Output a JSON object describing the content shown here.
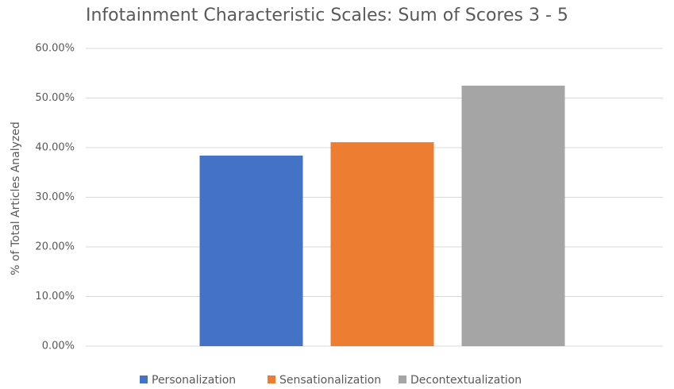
{
  "chart_data": {
    "type": "bar",
    "title": "Infotainment Characteristic Scales: Sum of Scores 3 - 5",
    "y_label": "% of Total Articles Analyzed",
    "categories": [
      null
    ],
    "series": [
      {
        "name": "Personalization",
        "color": "#4472c4",
        "values": [
          38.4
        ]
      },
      {
        "name": "Sensationalization",
        "color": "#ed7d31",
        "values": [
          41.1
        ]
      },
      {
        "name": "Decontextualization",
        "color": "#a5a5a5",
        "values": [
          52.5
        ]
      }
    ],
    "ylim": [
      0,
      60
    ],
    "yticks": [
      {
        "value": 0,
        "label": "0.00%"
      },
      {
        "value": 10,
        "label": "10.00%"
      },
      {
        "value": 20,
        "label": "20.00%"
      },
      {
        "value": 30,
        "label": "30.00%"
      },
      {
        "value": 40,
        "label": "40.00%"
      },
      {
        "value": 50,
        "label": "50.00%"
      },
      {
        "value": 60,
        "label": "60.00%"
      }
    ],
    "grid": true,
    "legend": "bottom"
  }
}
